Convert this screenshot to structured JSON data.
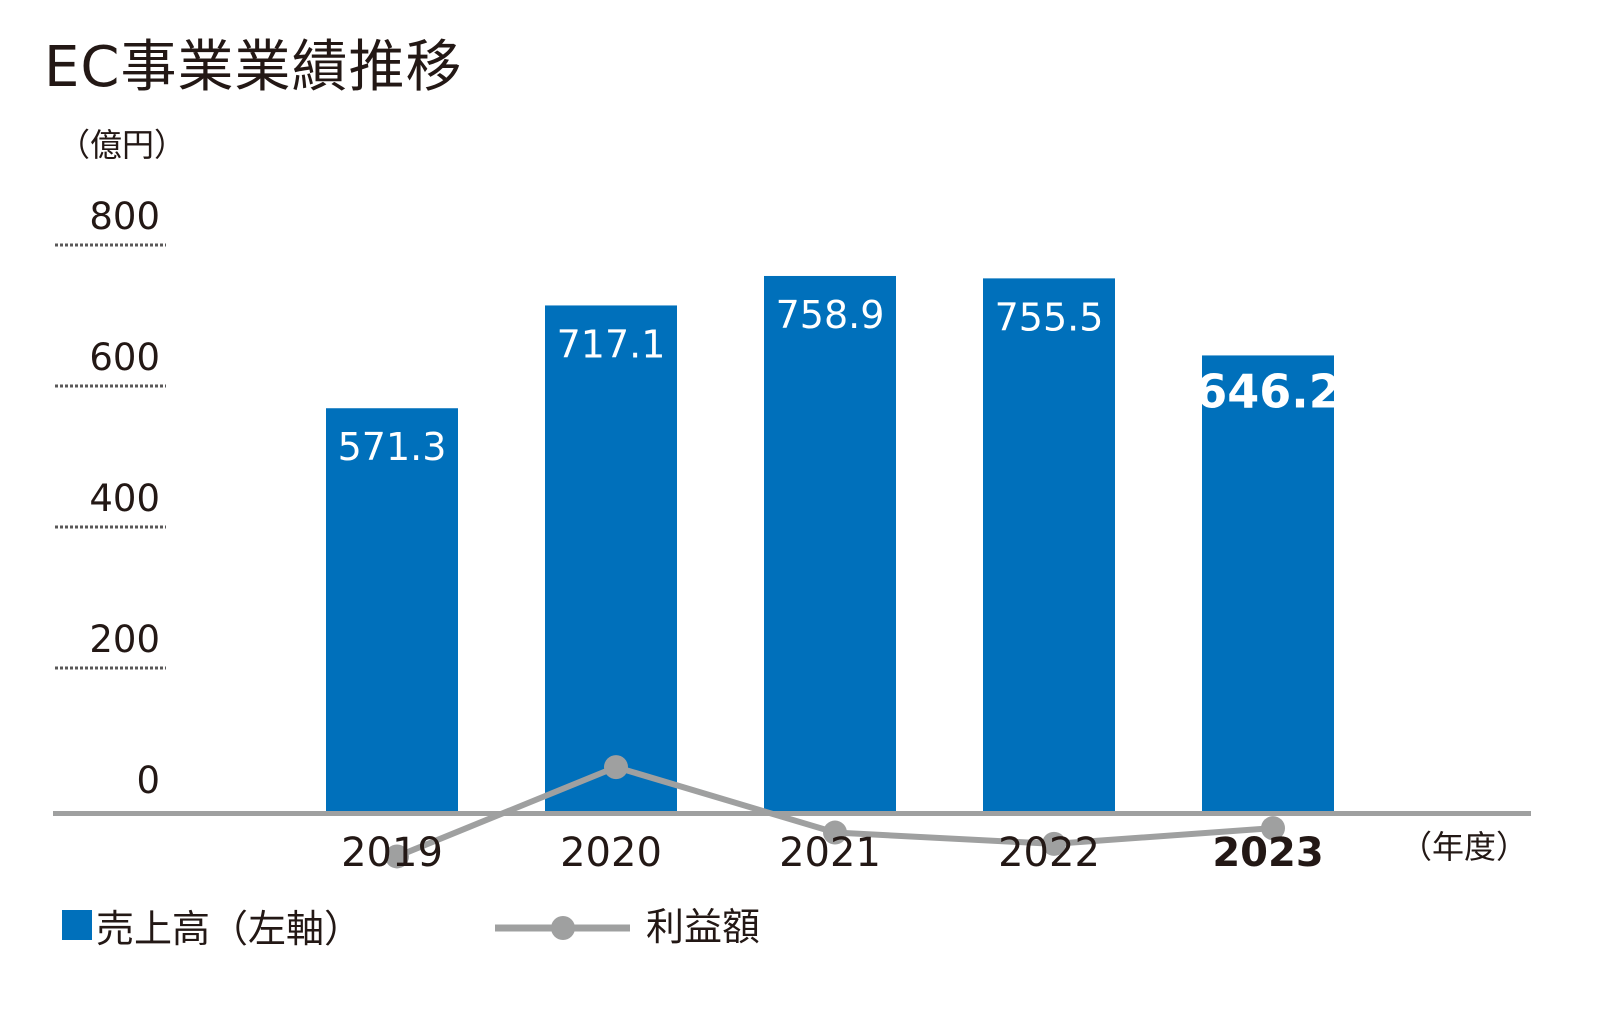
{
  "chart_data": {
    "type": "bar",
    "title": "EC事業業績推移",
    "y_unit": "（億円）",
    "x_unit": "（年度）",
    "categories": [
      "2019",
      "2020",
      "2021",
      "2022",
      "2023"
    ],
    "highlight_category": "2023",
    "ylim": [
      0,
      800
    ],
    "yticks": [
      "0",
      "200",
      "400",
      "600",
      "800"
    ],
    "grid": "dotted horizontal at 200/400/600/800",
    "legend_position": "bottom-left",
    "series": [
      {
        "name": "売上高（左軸）",
        "type": "bar",
        "axis": "left",
        "color": "#0070BB",
        "values": [
          571.3,
          717.1,
          758.9,
          755.5,
          646.2
        ],
        "labels": [
          "571.3",
          "717.1",
          "758.9",
          "755.5",
          "646.2"
        ]
      },
      {
        "name": "利益額",
        "type": "line",
        "axis": "right-unlabeled",
        "color": "#9FA0A0",
        "values": [
          729,
          871,
          767,
          749,
          774
        ]
      }
    ]
  }
}
